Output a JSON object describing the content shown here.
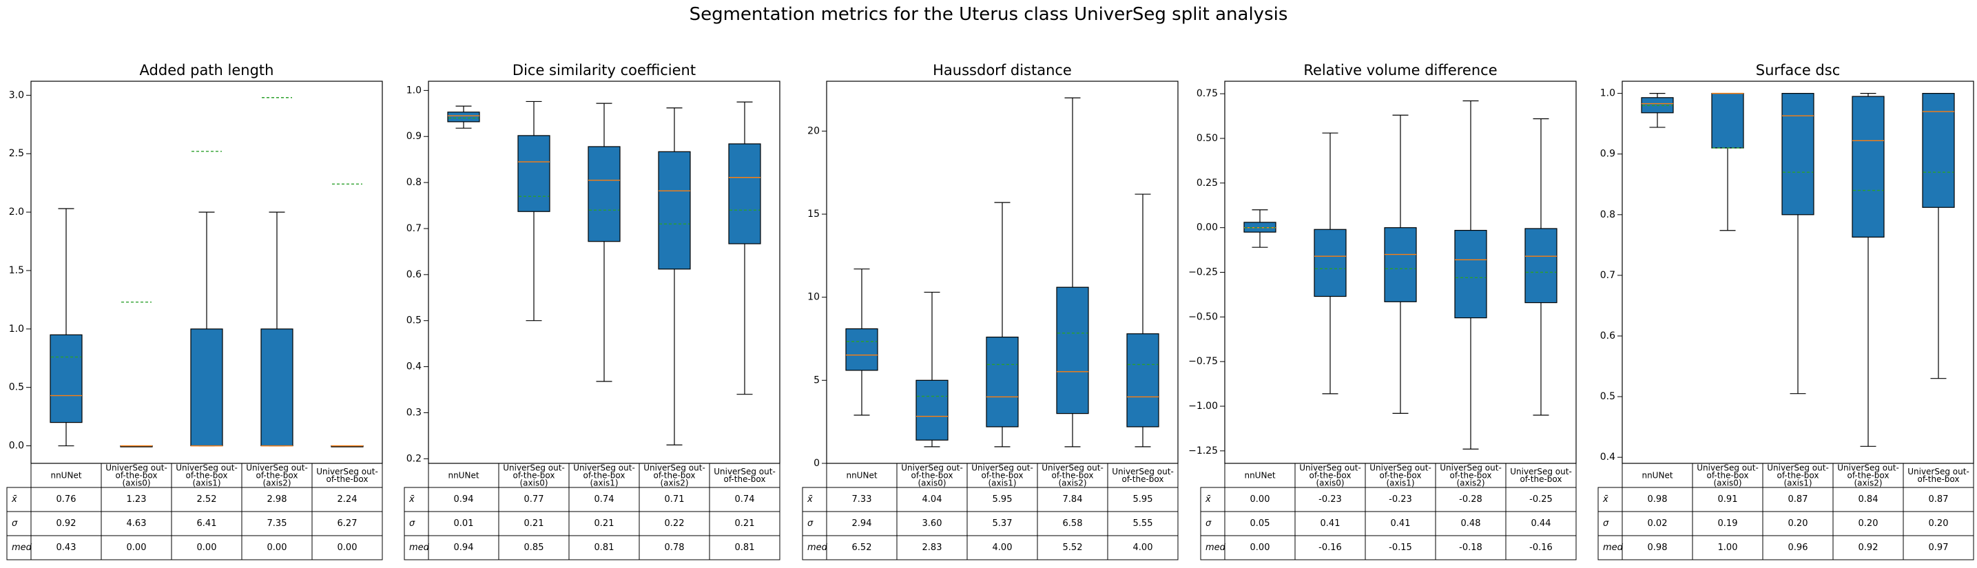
{
  "suptitle": "Segmentation metrics for the Uterus class UniverSeg split analysis",
  "table_row_labels": [
    "x̄",
    "σ",
    "med"
  ],
  "colors": {
    "box_fill": "#1f77b4",
    "median": "#ff7f0e",
    "mean": "#2ca02c",
    "axis": "#000000"
  },
  "chart_data": [
    {
      "type": "box",
      "title": "Added path length",
      "categories": [
        "nnUNet",
        "UniverSeg out-\nof-the-box\n(axis0)",
        "UniverSeg out-\nof-the-box\n(axis1)",
        "UniverSeg out-\nof-the-box\n(axis2)",
        "UniverSeg out-\nof-the-box"
      ],
      "ylim": [
        -0.15,
        3.12
      ],
      "yticks": [
        0.0,
        0.5,
        1.0,
        1.5,
        2.0,
        2.5,
        3.0
      ],
      "ytick_labels": [
        "0.0",
        "0.5",
        "1.0",
        "1.5",
        "2.0",
        "2.5",
        "3.0"
      ],
      "boxes": [
        {
          "whislo": 0.0,
          "q1": 0.2,
          "med": 0.43,
          "q3": 0.95,
          "whishi": 2.03,
          "mean": 0.76
        },
        {
          "whislo": 0.0,
          "q1": 0.0,
          "med": 0.0,
          "q3": 0.0,
          "whishi": 0.0,
          "mean": 1.23
        },
        {
          "whislo": 0.0,
          "q1": 0.0,
          "med": 0.0,
          "q3": 1.0,
          "whishi": 2.0,
          "mean": 2.52
        },
        {
          "whislo": 0.0,
          "q1": 0.0,
          "med": 0.0,
          "q3": 1.0,
          "whishi": 2.0,
          "mean": 2.98
        },
        {
          "whislo": 0.0,
          "q1": 0.0,
          "med": 0.0,
          "q3": 0.0,
          "whishi": 0.0,
          "mean": 2.24
        }
      ],
      "table": [
        [
          "0.76",
          "1.23",
          "2.52",
          "2.98",
          "2.24"
        ],
        [
          "0.92",
          "4.63",
          "6.41",
          "7.35",
          "6.27"
        ],
        [
          "0.43",
          "0.00",
          "0.00",
          "0.00",
          "0.00"
        ]
      ]
    },
    {
      "type": "box",
      "title": "Dice similarity coefficient",
      "categories": [
        "nnUNet",
        "UniverSeg out-\nof-the-box\n(axis0)",
        "UniverSeg out-\nof-the-box\n(axis1)",
        "UniverSeg out-\nof-the-box\n(axis2)",
        "UniverSeg out-\nof-the-box"
      ],
      "ylim": [
        0.19,
        1.02
      ],
      "yticks": [
        0.2,
        0.3,
        0.4,
        0.5,
        0.6,
        0.7,
        0.8,
        0.9,
        1.0
      ],
      "ytick_labels": [
        "0.2",
        "0.3",
        "0.4",
        "0.5",
        "0.6",
        "0.7",
        "0.8",
        "0.9",
        "1.0"
      ],
      "boxes": [
        {
          "whislo": 0.918,
          "q1": 0.932,
          "med": 0.945,
          "q3": 0.953,
          "whishi": 0.966,
          "mean": 0.94
        },
        {
          "whislo": 0.5,
          "q1": 0.737,
          "med": 0.845,
          "q3": 0.902,
          "whishi": 0.976,
          "mean": 0.77
        },
        {
          "whislo": 0.368,
          "q1": 0.672,
          "med": 0.805,
          "q3": 0.878,
          "whishi": 0.972,
          "mean": 0.74
        },
        {
          "whislo": 0.23,
          "q1": 0.612,
          "med": 0.782,
          "q3": 0.867,
          "whishi": 0.962,
          "mean": 0.71
        },
        {
          "whislo": 0.34,
          "q1": 0.667,
          "med": 0.811,
          "q3": 0.884,
          "whishi": 0.975,
          "mean": 0.74
        }
      ],
      "table": [
        [
          "0.94",
          "0.77",
          "0.74",
          "0.71",
          "0.74"
        ],
        [
          "0.01",
          "0.21",
          "0.21",
          "0.22",
          "0.21"
        ],
        [
          "0.94",
          "0.85",
          "0.81",
          "0.78",
          "0.81"
        ]
      ]
    },
    {
      "type": "box",
      "title": "Haussdorf distance",
      "categories": [
        "nnUNet",
        "UniverSeg out-\nof-the-box\n(axis0)",
        "UniverSeg out-\nof-the-box\n(axis1)",
        "UniverSeg out-\nof-the-box\n(axis2)",
        "UniverSeg out-\nof-the-box"
      ],
      "ylim": [
        0.0,
        23.0
      ],
      "yticks": [
        0,
        5,
        10,
        15,
        20
      ],
      "ytick_labels": [
        "0",
        "5",
        "10",
        "15",
        "20"
      ],
      "boxes": [
        {
          "whislo": 2.9,
          "q1": 5.6,
          "med": 6.52,
          "q3": 8.1,
          "whishi": 11.7,
          "mean": 7.33
        },
        {
          "whislo": 1.0,
          "q1": 1.4,
          "med": 2.83,
          "q3": 5.0,
          "whishi": 10.3,
          "mean": 4.04
        },
        {
          "whislo": 1.0,
          "q1": 2.2,
          "med": 4.0,
          "q3": 7.6,
          "whishi": 15.7,
          "mean": 5.95
        },
        {
          "whislo": 1.0,
          "q1": 3.0,
          "med": 5.52,
          "q3": 10.6,
          "whishi": 22.0,
          "mean": 7.84
        },
        {
          "whislo": 1.0,
          "q1": 2.2,
          "med": 4.0,
          "q3": 7.8,
          "whishi": 16.2,
          "mean": 5.95
        }
      ],
      "table": [
        [
          "7.33",
          "4.04",
          "5.95",
          "7.84",
          "5.95"
        ],
        [
          "2.94",
          "3.60",
          "5.37",
          "6.58",
          "5.55"
        ],
        [
          "6.52",
          "2.83",
          "4.00",
          "5.52",
          "4.00"
        ]
      ]
    },
    {
      "type": "box",
      "title": "Relative volume difference",
      "categories": [
        "nnUNet",
        "UniverSeg out-\nof-the-box\n(axis0)",
        "UniverSeg out-\nof-the-box\n(axis1)",
        "UniverSeg out-\nof-the-box\n(axis2)",
        "UniverSeg out-\nof-the-box"
      ],
      "ylim": [
        -1.32,
        0.82
      ],
      "yticks": [
        -1.25,
        -1.0,
        -0.75,
        -0.5,
        -0.25,
        0.0,
        0.25,
        0.5,
        0.75
      ],
      "ytick_labels": [
        "−1.25",
        "−1.00",
        "−0.75",
        "−0.50",
        "−0.25",
        "0.00",
        "0.25",
        "0.50",
        "0.75"
      ],
      "boxes": [
        {
          "whislo": -0.11,
          "q1": -0.025,
          "med": 0.0,
          "q3": 0.03,
          "whishi": 0.1,
          "mean": 0.0
        },
        {
          "whislo": -0.93,
          "q1": -0.385,
          "med": -0.16,
          "q3": -0.01,
          "whishi": 0.53,
          "mean": -0.23
        },
        {
          "whislo": -1.04,
          "q1": -0.415,
          "med": -0.15,
          "q3": 0.0,
          "whishi": 0.63,
          "mean": -0.23
        },
        {
          "whislo": -1.24,
          "q1": -0.505,
          "med": -0.18,
          "q3": -0.015,
          "whishi": 0.71,
          "mean": -0.28
        },
        {
          "whislo": -1.05,
          "q1": -0.42,
          "med": -0.16,
          "q3": -0.005,
          "whishi": 0.61,
          "mean": -0.25
        }
      ],
      "table": [
        [
          "0.00",
          "-0.23",
          "-0.23",
          "-0.28",
          "-0.25"
        ],
        [
          "0.05",
          "0.41",
          "0.41",
          "0.48",
          "0.44"
        ],
        [
          "0.00",
          "-0.16",
          "-0.15",
          "-0.18",
          "-0.16"
        ]
      ]
    },
    {
      "type": "box",
      "title": "Surface dsc",
      "categories": [
        "nnUNet",
        "UniverSeg out-\nof-the-box\n(axis0)",
        "UniverSeg out-\nof-the-box\n(axis1)",
        "UniverSeg out-\nof-the-box\n(axis2)",
        "UniverSeg out-\nof-the-box"
      ],
      "ylim": [
        0.39,
        1.02
      ],
      "yticks": [
        0.4,
        0.5,
        0.6,
        0.7,
        0.8,
        0.9,
        1.0
      ],
      "ytick_labels": [
        "0.4",
        "0.5",
        "0.6",
        "0.7",
        "0.8",
        "0.9",
        "1.0"
      ],
      "boxes": [
        {
          "whislo": 0.944,
          "q1": 0.968,
          "med": 0.983,
          "q3": 0.993,
          "whishi": 1.0,
          "mean": 0.98
        },
        {
          "whislo": 0.774,
          "q1": 0.91,
          "med": 1.0,
          "q3": 1.0,
          "whishi": 1.0,
          "mean": 0.91
        },
        {
          "whislo": 0.505,
          "q1": 0.8,
          "med": 0.963,
          "q3": 1.0,
          "whishi": 1.0,
          "mean": 0.87
        },
        {
          "whislo": 0.418,
          "q1": 0.763,
          "med": 0.922,
          "q3": 0.995,
          "whishi": 1.0,
          "mean": 0.84
        },
        {
          "whislo": 0.53,
          "q1": 0.812,
          "med": 0.97,
          "q3": 1.0,
          "whishi": 1.0,
          "mean": 0.87
        }
      ],
      "table": [
        [
          "0.98",
          "0.91",
          "0.87",
          "0.84",
          "0.87"
        ],
        [
          "0.02",
          "0.19",
          "0.20",
          "0.20",
          "0.20"
        ],
        [
          "0.98",
          "1.00",
          "0.96",
          "0.92",
          "0.97"
        ]
      ]
    }
  ]
}
